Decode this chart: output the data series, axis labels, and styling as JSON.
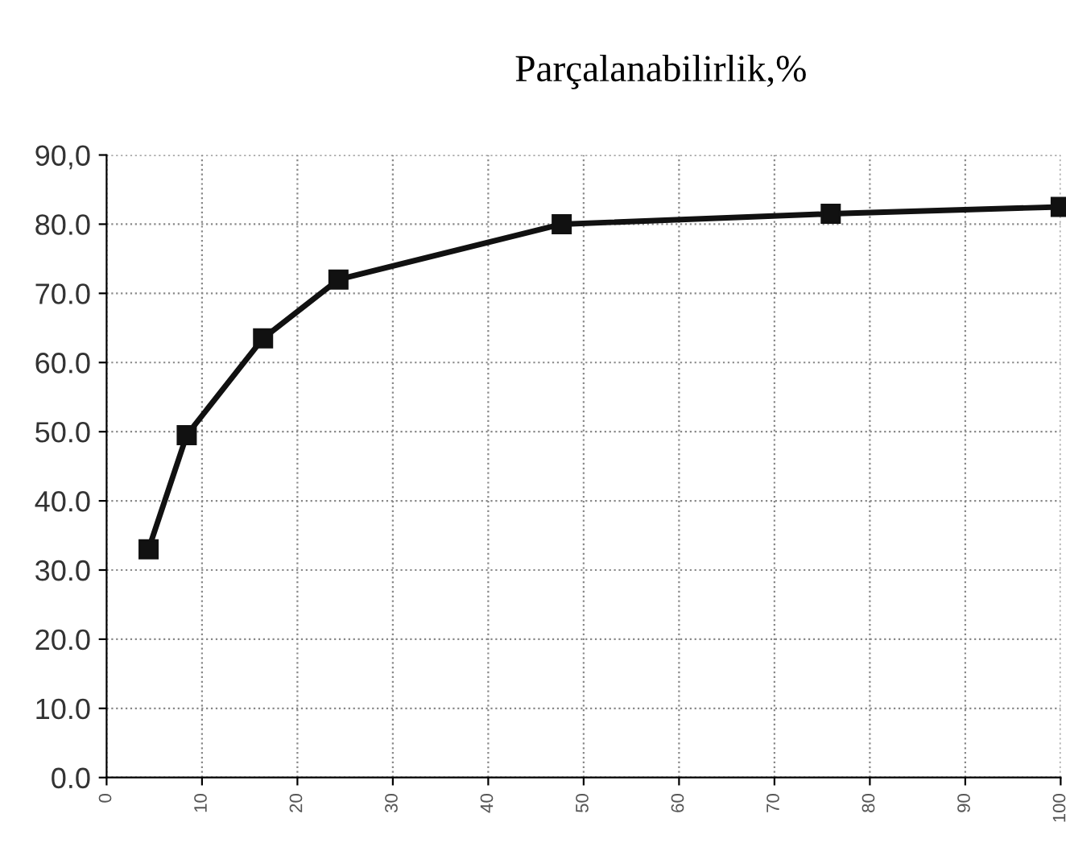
{
  "chart_data": {
    "type": "line",
    "title": "Parçalanabilirlik,%",
    "x": [
      4.4,
      8.4,
      16.4,
      24.3,
      47.7,
      75.9,
      100
    ],
    "series": [
      {
        "color": "#111111",
        "values": [
          33,
          49.5,
          63.5,
          72,
          80,
          81.5,
          82.5
        ]
      }
    ],
    "xlim": [
      0,
      100
    ],
    "xticks": [
      0,
      10,
      20,
      30,
      40,
      50,
      60,
      70,
      80,
      90,
      100
    ],
    "ylim": [
      0,
      90
    ],
    "yticks": [
      {
        "value": 0,
        "label": "0.0"
      },
      {
        "value": 10,
        "label": "10.0"
      },
      {
        "value": 20,
        "label": "20.0"
      },
      {
        "value": 30,
        "label": "30.0"
      },
      {
        "value": 40,
        "label": "40.0"
      },
      {
        "value": 50,
        "label": "50.0"
      },
      {
        "value": 60,
        "label": "60.0"
      },
      {
        "value": 70,
        "label": "70.0"
      },
      {
        "value": 80,
        "label": "80.0"
      },
      {
        "value": 90,
        "label": "90,0"
      }
    ],
    "grid": true,
    "marker": "square",
    "line_style": "solid"
  }
}
